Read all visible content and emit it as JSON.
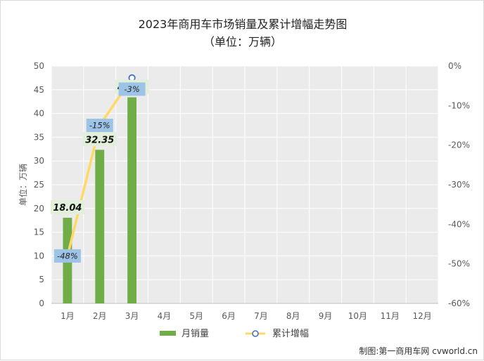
{
  "chart_data": {
    "type": "bar",
    "title": "2023年商用车市场销量及累计增幅走势图",
    "subtitle": "（单位：万辆）",
    "ylabel": "单位：万辆",
    "categories": [
      "1月",
      "2月",
      "3月",
      "4月",
      "5月",
      "6月",
      "7月",
      "8月",
      "9月",
      "10月",
      "11月",
      "12月"
    ],
    "ylim": [
      0,
      50
    ],
    "yticks": [
      "0",
      "5",
      "10",
      "15",
      "20",
      "25",
      "30",
      "35",
      "40",
      "45",
      "50"
    ],
    "y2lim": [
      -60,
      0
    ],
    "y2ticks": [
      "0%",
      "-10%",
      "-20%",
      "-30%",
      "-40%",
      "-50%",
      "-60%"
    ],
    "series": [
      {
        "name": "月销量",
        "type": "bar",
        "values": [
          18.04,
          32.35,
          43.41,
          null,
          null,
          null,
          null,
          null,
          null,
          null,
          null,
          null
        ],
        "labels": [
          "18.04",
          "32.35",
          "43.41"
        ],
        "color": "#70ad47"
      },
      {
        "name": "累计增幅",
        "type": "line",
        "axis": "right",
        "values": [
          -48,
          -15,
          -3,
          null,
          null,
          null,
          null,
          null,
          null,
          null,
          null,
          null
        ],
        "labels": [
          "-48%",
          "-15%",
          "-3%"
        ],
        "color": "#ffd966",
        "marker_color": "#4472c4"
      }
    ],
    "grid": true,
    "legend": "bottom"
  },
  "colors": {
    "plot_bg": "#ebebeb",
    "grid": "#ffffff",
    "bar_label_bg": "#e2efda",
    "line_label_bg": "#9dc3e6"
  },
  "source": "制图:第一商用车网 cvworld.cn"
}
